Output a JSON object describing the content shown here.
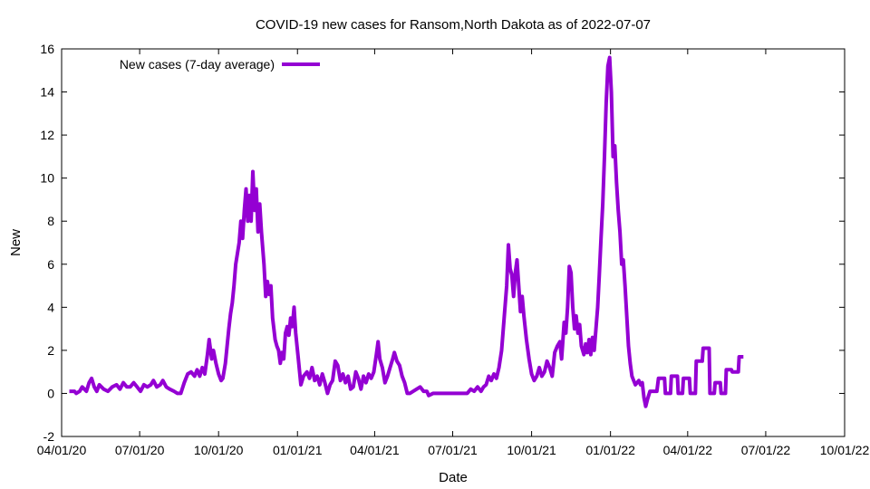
{
  "chart_data": {
    "type": "line",
    "title": "COVID-19 new cases for Ransom,North Dakota as of 2022-07-07",
    "xlabel": "Date",
    "ylabel": "New",
    "ylim": [
      -2,
      16
    ],
    "yticks": [
      -2,
      0,
      2,
      4,
      6,
      8,
      10,
      12,
      14,
      16
    ],
    "xlim": [
      "2020-04-01",
      "2022-10-01"
    ],
    "xticks": [
      {
        "date": "2020-04-01",
        "label": "04/01/20"
      },
      {
        "date": "2020-07-01",
        "label": "07/01/20"
      },
      {
        "date": "2020-10-01",
        "label": "10/01/20"
      },
      {
        "date": "2021-01-01",
        "label": "01/01/21"
      },
      {
        "date": "2021-04-01",
        "label": "04/01/21"
      },
      {
        "date": "2021-07-01",
        "label": "07/01/21"
      },
      {
        "date": "2021-10-01",
        "label": "10/01/21"
      },
      {
        "date": "2022-01-01",
        "label": "01/01/22"
      },
      {
        "date": "2022-04-01",
        "label": "04/01/22"
      },
      {
        "date": "2022-07-01",
        "label": "07/01/22"
      },
      {
        "date": "2022-10-01",
        "label": "10/01/22"
      }
    ],
    "grid": false,
    "legend": "top-left",
    "series": [
      {
        "name": "New cases (7-day average)",
        "color": "#9400d3",
        "points": [
          [
            "2020-04-10",
            0.1
          ],
          [
            "2020-04-16",
            0.1
          ],
          [
            "2020-04-18",
            0.0
          ],
          [
            "2020-04-22",
            0.1
          ],
          [
            "2020-04-25",
            0.3
          ],
          [
            "2020-04-30",
            0.1
          ],
          [
            "2020-05-03",
            0.5
          ],
          [
            "2020-05-06",
            0.7
          ],
          [
            "2020-05-09",
            0.3
          ],
          [
            "2020-05-12",
            0.1
          ],
          [
            "2020-05-15",
            0.4
          ],
          [
            "2020-05-20",
            0.2
          ],
          [
            "2020-05-25",
            0.1
          ],
          [
            "2020-05-30",
            0.3
          ],
          [
            "2020-06-04",
            0.4
          ],
          [
            "2020-06-08",
            0.2
          ],
          [
            "2020-06-12",
            0.5
          ],
          [
            "2020-06-16",
            0.3
          ],
          [
            "2020-06-20",
            0.3
          ],
          [
            "2020-06-24",
            0.5
          ],
          [
            "2020-06-28",
            0.3
          ],
          [
            "2020-07-02",
            0.1
          ],
          [
            "2020-07-06",
            0.4
          ],
          [
            "2020-07-10",
            0.3
          ],
          [
            "2020-07-14",
            0.4
          ],
          [
            "2020-07-17",
            0.6
          ],
          [
            "2020-07-21",
            0.3
          ],
          [
            "2020-07-25",
            0.4
          ],
          [
            "2020-07-28",
            0.6
          ],
          [
            "2020-08-01",
            0.3
          ],
          [
            "2020-08-05",
            0.2
          ],
          [
            "2020-08-10",
            0.1
          ],
          [
            "2020-08-14",
            0.0
          ],
          [
            "2020-08-18",
            0.0
          ],
          [
            "2020-08-22",
            0.5
          ],
          [
            "2020-08-26",
            0.9
          ],
          [
            "2020-08-30",
            1.0
          ],
          [
            "2020-09-03",
            0.8
          ],
          [
            "2020-09-06",
            1.1
          ],
          [
            "2020-09-09",
            0.8
          ],
          [
            "2020-09-12",
            1.2
          ],
          [
            "2020-09-15",
            0.9
          ],
          [
            "2020-09-18",
            1.8
          ],
          [
            "2020-09-20",
            2.5
          ],
          [
            "2020-09-23",
            1.6
          ],
          [
            "2020-09-25",
            2.0
          ],
          [
            "2020-09-28",
            1.4
          ],
          [
            "2020-10-01",
            0.9
          ],
          [
            "2020-10-04",
            0.6
          ],
          [
            "2020-10-06",
            0.7
          ],
          [
            "2020-10-09",
            1.4
          ],
          [
            "2020-10-11",
            2.2
          ],
          [
            "2020-10-13",
            3.0
          ],
          [
            "2020-10-15",
            3.7
          ],
          [
            "2020-10-17",
            4.2
          ],
          [
            "2020-10-19",
            5.0
          ],
          [
            "2020-10-21",
            6.0
          ],
          [
            "2020-10-23",
            6.5
          ],
          [
            "2020-10-25",
            7.0
          ],
          [
            "2020-10-27",
            8.0
          ],
          [
            "2020-10-29",
            7.2
          ],
          [
            "2020-10-31",
            8.5
          ],
          [
            "2020-11-02",
            9.5
          ],
          [
            "2020-11-04",
            8.0
          ],
          [
            "2020-11-06",
            9.2
          ],
          [
            "2020-11-08",
            8.0
          ],
          [
            "2020-11-10",
            10.3
          ],
          [
            "2020-11-12",
            8.5
          ],
          [
            "2020-11-14",
            9.5
          ],
          [
            "2020-11-16",
            7.5
          ],
          [
            "2020-11-18",
            8.8
          ],
          [
            "2020-11-20",
            7.5
          ],
          [
            "2020-11-23",
            6.0
          ],
          [
            "2020-11-25",
            4.5
          ],
          [
            "2020-11-27",
            5.2
          ],
          [
            "2020-11-29",
            4.6
          ],
          [
            "2020-12-01",
            5.0
          ],
          [
            "2020-12-03",
            3.5
          ],
          [
            "2020-12-06",
            2.5
          ],
          [
            "2020-12-08",
            2.2
          ],
          [
            "2020-12-10",
            2.0
          ],
          [
            "2020-12-12",
            1.4
          ],
          [
            "2020-12-14",
            1.9
          ],
          [
            "2020-12-16",
            1.6
          ],
          [
            "2020-12-18",
            2.8
          ],
          [
            "2020-12-20",
            3.1
          ],
          [
            "2020-12-22",
            2.7
          ],
          [
            "2020-12-24",
            3.5
          ],
          [
            "2020-12-26",
            3.1
          ],
          [
            "2020-12-28",
            4.0
          ],
          [
            "2020-12-30",
            2.8
          ],
          [
            "2021-01-02",
            1.6
          ],
          [
            "2021-01-05",
            0.4
          ],
          [
            "2021-01-08",
            0.8
          ],
          [
            "2021-01-12",
            1.0
          ],
          [
            "2021-01-15",
            0.7
          ],
          [
            "2021-01-18",
            1.2
          ],
          [
            "2021-01-21",
            0.6
          ],
          [
            "2021-01-24",
            0.8
          ],
          [
            "2021-01-27",
            0.4
          ],
          [
            "2021-01-30",
            0.9
          ],
          [
            "2021-02-02",
            0.5
          ],
          [
            "2021-02-05",
            0.0
          ],
          [
            "2021-02-08",
            0.4
          ],
          [
            "2021-02-11",
            0.6
          ],
          [
            "2021-02-14",
            1.5
          ],
          [
            "2021-02-17",
            1.3
          ],
          [
            "2021-02-20",
            0.6
          ],
          [
            "2021-02-23",
            0.9
          ],
          [
            "2021-02-26",
            0.5
          ],
          [
            "2021-03-01",
            0.8
          ],
          [
            "2021-03-04",
            0.2
          ],
          [
            "2021-03-07",
            0.3
          ],
          [
            "2021-03-10",
            1.0
          ],
          [
            "2021-03-13",
            0.7
          ],
          [
            "2021-03-16",
            0.2
          ],
          [
            "2021-03-19",
            0.8
          ],
          [
            "2021-03-22",
            0.5
          ],
          [
            "2021-03-25",
            0.9
          ],
          [
            "2021-03-28",
            0.7
          ],
          [
            "2021-03-31",
            1.0
          ],
          [
            "2021-04-03",
            1.8
          ],
          [
            "2021-04-05",
            2.4
          ],
          [
            "2021-04-07",
            1.6
          ],
          [
            "2021-04-10",
            1.2
          ],
          [
            "2021-04-13",
            0.5
          ],
          [
            "2021-04-16",
            0.8
          ],
          [
            "2021-04-19",
            1.2
          ],
          [
            "2021-04-22",
            1.6
          ],
          [
            "2021-04-24",
            1.9
          ],
          [
            "2021-04-27",
            1.5
          ],
          [
            "2021-04-30",
            1.3
          ],
          [
            "2021-05-03",
            0.8
          ],
          [
            "2021-05-06",
            0.5
          ],
          [
            "2021-05-09",
            0.0
          ],
          [
            "2021-05-12",
            0.0
          ],
          [
            "2021-05-16",
            0.1
          ],
          [
            "2021-05-20",
            0.2
          ],
          [
            "2021-05-24",
            0.3
          ],
          [
            "2021-05-28",
            0.1
          ],
          [
            "2021-06-01",
            0.1
          ],
          [
            "2021-06-03",
            -0.1
          ],
          [
            "2021-06-08",
            0.0
          ],
          [
            "2021-06-15",
            0.0
          ],
          [
            "2021-06-25",
            0.0
          ],
          [
            "2021-07-05",
            0.0
          ],
          [
            "2021-07-12",
            0.0
          ],
          [
            "2021-07-18",
            0.0
          ],
          [
            "2021-07-22",
            0.2
          ],
          [
            "2021-07-26",
            0.1
          ],
          [
            "2021-07-30",
            0.3
          ],
          [
            "2021-08-03",
            0.1
          ],
          [
            "2021-08-06",
            0.3
          ],
          [
            "2021-08-09",
            0.4
          ],
          [
            "2021-08-12",
            0.8
          ],
          [
            "2021-08-15",
            0.6
          ],
          [
            "2021-08-18",
            0.9
          ],
          [
            "2021-08-21",
            0.7
          ],
          [
            "2021-08-24",
            1.2
          ],
          [
            "2021-08-27",
            2.0
          ],
          [
            "2021-08-30",
            3.5
          ],
          [
            "2021-09-02",
            5.0
          ],
          [
            "2021-09-04",
            6.9
          ],
          [
            "2021-09-06",
            5.8
          ],
          [
            "2021-09-08",
            5.5
          ],
          [
            "2021-09-10",
            4.5
          ],
          [
            "2021-09-12",
            5.6
          ],
          [
            "2021-09-14",
            6.2
          ],
          [
            "2021-09-16",
            5.0
          ],
          [
            "2021-09-18",
            3.8
          ],
          [
            "2021-09-20",
            4.5
          ],
          [
            "2021-09-22",
            3.6
          ],
          [
            "2021-09-25",
            2.5
          ],
          [
            "2021-09-28",
            1.6
          ],
          [
            "2021-10-01",
            0.9
          ],
          [
            "2021-10-04",
            0.6
          ],
          [
            "2021-10-07",
            0.8
          ],
          [
            "2021-10-10",
            1.2
          ],
          [
            "2021-10-13",
            0.8
          ],
          [
            "2021-10-16",
            1.0
          ],
          [
            "2021-10-19",
            1.5
          ],
          [
            "2021-10-22",
            1.2
          ],
          [
            "2021-10-25",
            0.8
          ],
          [
            "2021-10-28",
            1.9
          ],
          [
            "2021-10-31",
            2.2
          ],
          [
            "2021-11-03",
            2.4
          ],
          [
            "2021-11-05",
            1.6
          ],
          [
            "2021-11-08",
            3.3
          ],
          [
            "2021-11-10",
            2.8
          ],
          [
            "2021-11-12",
            4.0
          ],
          [
            "2021-11-14",
            5.9
          ],
          [
            "2021-11-16",
            5.6
          ],
          [
            "2021-11-18",
            4.0
          ],
          [
            "2021-11-20",
            3.0
          ],
          [
            "2021-11-22",
            3.6
          ],
          [
            "2021-11-24",
            2.8
          ],
          [
            "2021-11-26",
            3.2
          ],
          [
            "2021-11-28",
            2.2
          ],
          [
            "2021-12-01",
            1.8
          ],
          [
            "2021-12-03",
            2.3
          ],
          [
            "2021-12-05",
            1.9
          ],
          [
            "2021-12-07",
            2.5
          ],
          [
            "2021-12-09",
            1.8
          ],
          [
            "2021-12-11",
            2.6
          ],
          [
            "2021-12-13",
            2.0
          ],
          [
            "2021-12-15",
            3.0
          ],
          [
            "2021-12-17",
            4.0
          ],
          [
            "2021-12-19",
            5.5
          ],
          [
            "2021-12-21",
            7.2
          ],
          [
            "2021-12-23",
            8.8
          ],
          [
            "2021-12-25",
            11.0
          ],
          [
            "2021-12-27",
            13.5
          ],
          [
            "2021-12-29",
            15.2
          ],
          [
            "2021-12-31",
            15.6
          ],
          [
            "2022-01-02",
            14.0
          ],
          [
            "2022-01-04",
            11.0
          ],
          [
            "2022-01-06",
            11.5
          ],
          [
            "2022-01-08",
            9.8
          ],
          [
            "2022-01-10",
            8.5
          ],
          [
            "2022-01-12",
            7.5
          ],
          [
            "2022-01-14",
            6.0
          ],
          [
            "2022-01-16",
            6.2
          ],
          [
            "2022-01-18",
            5.0
          ],
          [
            "2022-01-20",
            3.6
          ],
          [
            "2022-01-22",
            2.2
          ],
          [
            "2022-01-24",
            1.4
          ],
          [
            "2022-01-26",
            0.8
          ],
          [
            "2022-01-28",
            0.6
          ],
          [
            "2022-01-30",
            0.4
          ],
          [
            "2022-02-01",
            0.5
          ],
          [
            "2022-02-03",
            0.6
          ],
          [
            "2022-02-05",
            0.4
          ],
          [
            "2022-02-07",
            0.5
          ],
          [
            "2022-02-09",
            -0.2
          ],
          [
            "2022-02-11",
            -0.6
          ],
          [
            "2022-02-13",
            -0.3
          ],
          [
            "2022-02-16",
            0.1
          ],
          [
            "2022-02-20",
            0.1
          ],
          [
            "2022-02-24",
            0.1
          ],
          [
            "2022-02-26",
            0.7
          ],
          [
            "2022-03-05",
            0.7
          ],
          [
            "2022-03-06",
            0.0
          ],
          [
            "2022-03-12",
            0.0
          ],
          [
            "2022-03-13",
            0.8
          ],
          [
            "2022-03-20",
            0.8
          ],
          [
            "2022-03-21",
            0.0
          ],
          [
            "2022-03-26",
            0.0
          ],
          [
            "2022-03-27",
            0.7
          ],
          [
            "2022-04-03",
            0.7
          ],
          [
            "2022-04-04",
            0.0
          ],
          [
            "2022-04-10",
            0.0
          ],
          [
            "2022-04-11",
            1.5
          ],
          [
            "2022-04-18",
            1.5
          ],
          [
            "2022-04-19",
            2.1
          ],
          [
            "2022-04-26",
            2.1
          ],
          [
            "2022-04-27",
            0.0
          ],
          [
            "2022-05-02",
            0.0
          ],
          [
            "2022-05-03",
            0.5
          ],
          [
            "2022-05-09",
            0.5
          ],
          [
            "2022-05-10",
            0.0
          ],
          [
            "2022-05-15",
            0.0
          ],
          [
            "2022-05-16",
            1.1
          ],
          [
            "2022-05-22",
            1.1
          ],
          [
            "2022-05-23",
            1.0
          ],
          [
            "2022-05-30",
            1.0
          ],
          [
            "2022-05-31",
            1.7
          ],
          [
            "2022-06-05",
            1.7
          ]
        ]
      }
    ]
  }
}
